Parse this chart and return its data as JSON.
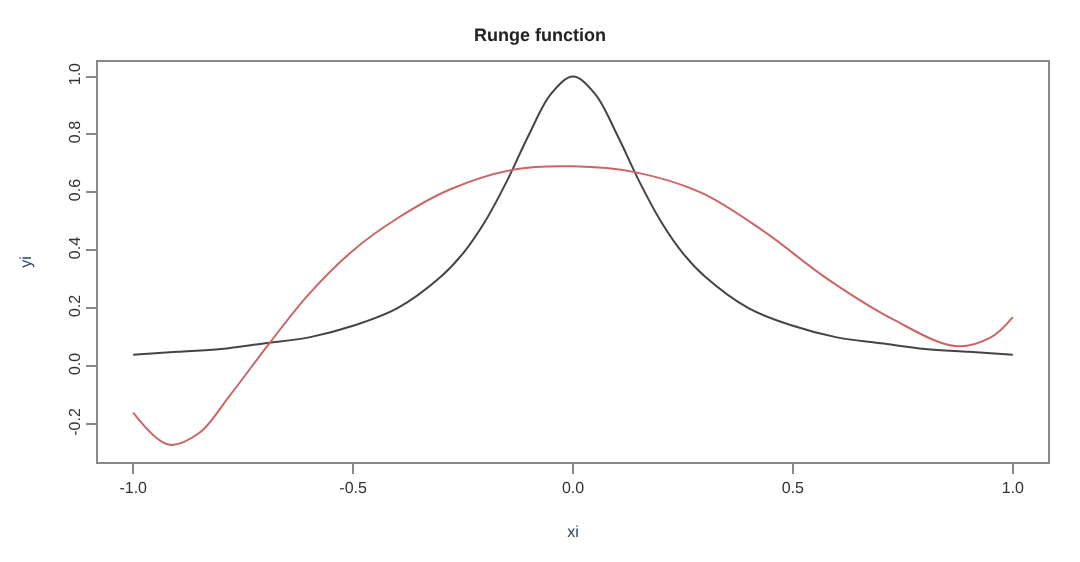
{
  "chart_data": {
    "type": "line",
    "title": "Runge function",
    "xlabel": "xi",
    "ylabel": "yi",
    "series": [
      {
        "color": "#444444",
        "x": [
          -1,
          -0.9,
          -0.8,
          -0.7,
          -0.6,
          -0.5,
          -0.4,
          -0.3,
          -0.25,
          -0.2,
          -0.15,
          -0.1,
          -0.05,
          0,
          0.05,
          0.1,
          0.15,
          0.2,
          0.25,
          0.3,
          0.4,
          0.5,
          0.6,
          0.7,
          0.8,
          0.9,
          1
        ],
        "values": [
          0.04,
          0.05,
          0.06,
          0.08,
          0.1,
          0.14,
          0.2,
          0.31,
          0.39,
          0.5,
          0.64,
          0.8,
          0.94,
          1,
          0.94,
          0.8,
          0.64,
          0.5,
          0.39,
          0.31,
          0.2,
          0.14,
          0.1,
          0.08,
          0.06,
          0.05,
          0.04
        ]
      },
      {
        "color": "#cc6666",
        "x": [
          -1,
          -0.92,
          -0.85,
          -0.78,
          -0.69,
          -0.6,
          -0.5,
          -0.4,
          -0.28,
          -0.13,
          0,
          0.14,
          0.29,
          0.43,
          0.58,
          0.73,
          0.87,
          0.95,
          1
        ],
        "values": [
          -0.16,
          -0.27,
          -0.23,
          -0.1,
          0.08,
          0.25,
          0.4,
          0.51,
          0.61,
          0.68,
          0.69,
          0.67,
          0.6,
          0.47,
          0.3,
          0.16,
          0.07,
          0.1,
          0.17
        ]
      }
    ],
    "xlim": [
      -1.08,
      1.08
    ],
    "xticks": [
      {
        "value": -1,
        "label": "-1.0"
      },
      -0.5,
      {
        "value": 0,
        "label": "0.0"
      },
      0.5,
      {
        "value": 1,
        "label": "1.0"
      }
    ],
    "ylim": [
      -0.33,
      1.05
    ],
    "yticks": [
      -0.2,
      {
        "value": 0,
        "label": "0.0"
      },
      0.2,
      0.4,
      0.6,
      0.8,
      {
        "value": 1,
        "label": "1.0"
      }
    ],
    "legend": false,
    "marker": "none",
    "line_style": "solid"
  }
}
